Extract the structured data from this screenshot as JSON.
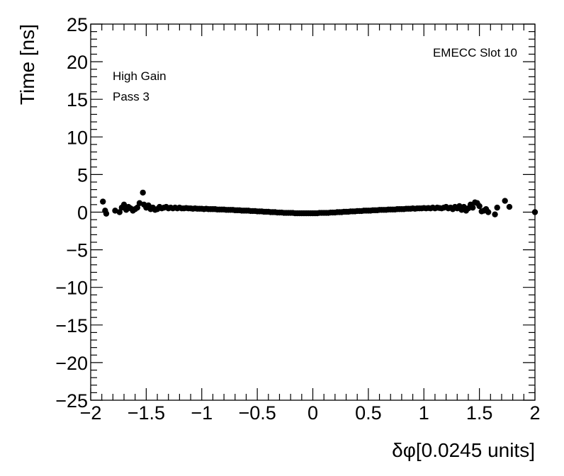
{
  "chart_data": {
    "type": "scatter",
    "xlabel": "δφ[0.0245 units]",
    "ylabel": "Time [ns]",
    "xlim": [
      -2,
      2
    ],
    "ylim": [
      -25,
      25
    ],
    "x_ticks": [
      -2,
      -1.5,
      -1,
      -0.5,
      0,
      0.5,
      1,
      1.5,
      2
    ],
    "x_tick_labels": [
      "−2",
      "−1.5",
      "−1",
      "−0.5",
      "0",
      "0.5",
      "1",
      "1.5",
      "2"
    ],
    "y_ticks": [
      -25,
      -20,
      -15,
      -10,
      -5,
      0,
      5,
      10,
      15,
      20,
      25
    ],
    "y_tick_labels": [
      "−25",
      "−20",
      "−15",
      "−10",
      "−5",
      "0",
      "5",
      "10",
      "15",
      "20",
      "25"
    ],
    "annotations": {
      "gain": "High Gain",
      "pass": "Pass 3",
      "slot": "EMECC Slot 10"
    },
    "grid": false,
    "marker_color": "#000000",
    "points": [
      [
        -1.89,
        1.4
      ],
      [
        -1.87,
        0.2
      ],
      [
        -1.86,
        -0.2
      ],
      [
        -1.78,
        0.2
      ],
      [
        -1.74,
        0.0
      ],
      [
        -1.72,
        0.6
      ],
      [
        -1.7,
        1.0
      ],
      [
        -1.68,
        0.3
      ],
      [
        -1.66,
        0.7
      ],
      [
        -1.64,
        0.5
      ],
      [
        -1.62,
        0.2
      ],
      [
        -1.6,
        0.4
      ],
      [
        -1.58,
        0.6
      ],
      [
        -1.56,
        1.2
      ],
      [
        -1.53,
        2.6
      ],
      [
        -1.52,
        1.0
      ],
      [
        -1.5,
        0.6
      ],
      [
        -1.48,
        0.9
      ],
      [
        -1.46,
        0.4
      ],
      [
        -1.44,
        0.6
      ],
      [
        -1.42,
        0.3
      ],
      [
        -1.4,
        0.4
      ],
      [
        -1.38,
        0.7
      ],
      [
        -1.36,
        0.5
      ],
      [
        -1.34,
        0.6
      ],
      [
        -1.32,
        0.7
      ],
      [
        -1.3,
        0.5
      ],
      [
        -1.28,
        0.6
      ],
      [
        -1.26,
        0.5
      ],
      [
        -1.24,
        0.6
      ],
      [
        -1.22,
        0.5
      ],
      [
        -1.2,
        0.6
      ],
      [
        -1.18,
        0.5
      ],
      [
        -1.16,
        0.5
      ],
      [
        -1.14,
        0.55
      ],
      [
        -1.12,
        0.5
      ],
      [
        -1.1,
        0.5
      ],
      [
        -1.08,
        0.45
      ],
      [
        -1.06,
        0.5
      ],
      [
        -1.04,
        0.45
      ],
      [
        -1.02,
        0.45
      ],
      [
        -1.0,
        0.45
      ],
      [
        -0.98,
        0.4
      ],
      [
        -0.96,
        0.45
      ],
      [
        -0.94,
        0.4
      ],
      [
        -0.92,
        0.4
      ],
      [
        -0.9,
        0.4
      ],
      [
        -0.88,
        0.4
      ],
      [
        -0.86,
        0.35
      ],
      [
        -0.84,
        0.35
      ],
      [
        -0.82,
        0.35
      ],
      [
        -0.8,
        0.35
      ],
      [
        -0.78,
        0.3
      ],
      [
        -0.76,
        0.3
      ],
      [
        -0.74,
        0.3
      ],
      [
        -0.72,
        0.3
      ],
      [
        -0.7,
        0.25
      ],
      [
        -0.68,
        0.25
      ],
      [
        -0.66,
        0.25
      ],
      [
        -0.64,
        0.2
      ],
      [
        -0.62,
        0.2
      ],
      [
        -0.6,
        0.2
      ],
      [
        -0.58,
        0.2
      ],
      [
        -0.56,
        0.15
      ],
      [
        -0.54,
        0.15
      ],
      [
        -0.52,
        0.15
      ],
      [
        -0.5,
        0.1
      ],
      [
        -0.48,
        0.1
      ],
      [
        -0.46,
        0.1
      ],
      [
        -0.44,
        0.05
      ],
      [
        -0.42,
        0.05
      ],
      [
        -0.4,
        0.05
      ],
      [
        -0.38,
        0.0
      ],
      [
        -0.36,
        0.0
      ],
      [
        -0.34,
        0.0
      ],
      [
        -0.32,
        -0.05
      ],
      [
        -0.3,
        -0.05
      ],
      [
        -0.28,
        -0.05
      ],
      [
        -0.26,
        -0.1
      ],
      [
        -0.24,
        -0.1
      ],
      [
        -0.22,
        -0.1
      ],
      [
        -0.2,
        -0.1
      ],
      [
        -0.18,
        -0.1
      ],
      [
        -0.16,
        -0.15
      ],
      [
        -0.14,
        -0.15
      ],
      [
        -0.12,
        -0.15
      ],
      [
        -0.1,
        -0.15
      ],
      [
        -0.08,
        -0.15
      ],
      [
        -0.06,
        -0.15
      ],
      [
        -0.04,
        -0.15
      ],
      [
        -0.02,
        -0.15
      ],
      [
        0.0,
        -0.15
      ],
      [
        0.02,
        -0.15
      ],
      [
        0.04,
        -0.15
      ],
      [
        0.06,
        -0.1
      ],
      [
        0.08,
        -0.1
      ],
      [
        0.1,
        -0.1
      ],
      [
        0.12,
        -0.1
      ],
      [
        0.14,
        -0.1
      ],
      [
        0.16,
        -0.05
      ],
      [
        0.18,
        -0.05
      ],
      [
        0.2,
        -0.05
      ],
      [
        0.22,
        0.0
      ],
      [
        0.24,
        0.0
      ],
      [
        0.26,
        0.0
      ],
      [
        0.28,
        0.05
      ],
      [
        0.3,
        0.05
      ],
      [
        0.32,
        0.05
      ],
      [
        0.34,
        0.1
      ],
      [
        0.36,
        0.1
      ],
      [
        0.38,
        0.1
      ],
      [
        0.4,
        0.15
      ],
      [
        0.42,
        0.15
      ],
      [
        0.44,
        0.15
      ],
      [
        0.46,
        0.2
      ],
      [
        0.48,
        0.2
      ],
      [
        0.5,
        0.2
      ],
      [
        0.52,
        0.2
      ],
      [
        0.54,
        0.25
      ],
      [
        0.56,
        0.25
      ],
      [
        0.58,
        0.25
      ],
      [
        0.6,
        0.3
      ],
      [
        0.62,
        0.3
      ],
      [
        0.64,
        0.3
      ],
      [
        0.66,
        0.3
      ],
      [
        0.68,
        0.35
      ],
      [
        0.7,
        0.35
      ],
      [
        0.72,
        0.35
      ],
      [
        0.74,
        0.35
      ],
      [
        0.76,
        0.4
      ],
      [
        0.78,
        0.4
      ],
      [
        0.8,
        0.4
      ],
      [
        0.82,
        0.4
      ],
      [
        0.84,
        0.45
      ],
      [
        0.86,
        0.45
      ],
      [
        0.88,
        0.45
      ],
      [
        0.9,
        0.5
      ],
      [
        0.92,
        0.45
      ],
      [
        0.94,
        0.5
      ],
      [
        0.96,
        0.5
      ],
      [
        0.98,
        0.5
      ],
      [
        1.0,
        0.55
      ],
      [
        1.02,
        0.5
      ],
      [
        1.04,
        0.55
      ],
      [
        1.06,
        0.5
      ],
      [
        1.08,
        0.6
      ],
      [
        1.1,
        0.5
      ],
      [
        1.12,
        0.6
      ],
      [
        1.14,
        0.55
      ],
      [
        1.16,
        0.5
      ],
      [
        1.18,
        0.6
      ],
      [
        1.2,
        0.7
      ],
      [
        1.22,
        0.5
      ],
      [
        1.24,
        0.6
      ],
      [
        1.26,
        0.4
      ],
      [
        1.28,
        0.7
      ],
      [
        1.3,
        0.5
      ],
      [
        1.32,
        0.8
      ],
      [
        1.34,
        0.3
      ],
      [
        1.36,
        0.7
      ],
      [
        1.38,
        0.2
      ],
      [
        1.4,
        0.5
      ],
      [
        1.42,
        1.0
      ],
      [
        1.44,
        0.6
      ],
      [
        1.46,
        1.3
      ],
      [
        1.48,
        1.2
      ],
      [
        1.5,
        0.8
      ],
      [
        1.52,
        0.1
      ],
      [
        1.54,
        0.2
      ],
      [
        1.56,
        0.4
      ],
      [
        1.58,
        0.0
      ],
      [
        1.64,
        -0.3
      ],
      [
        1.66,
        0.6
      ],
      [
        1.73,
        1.5
      ],
      [
        1.77,
        0.7
      ],
      [
        2.0,
        0.0
      ]
    ]
  }
}
